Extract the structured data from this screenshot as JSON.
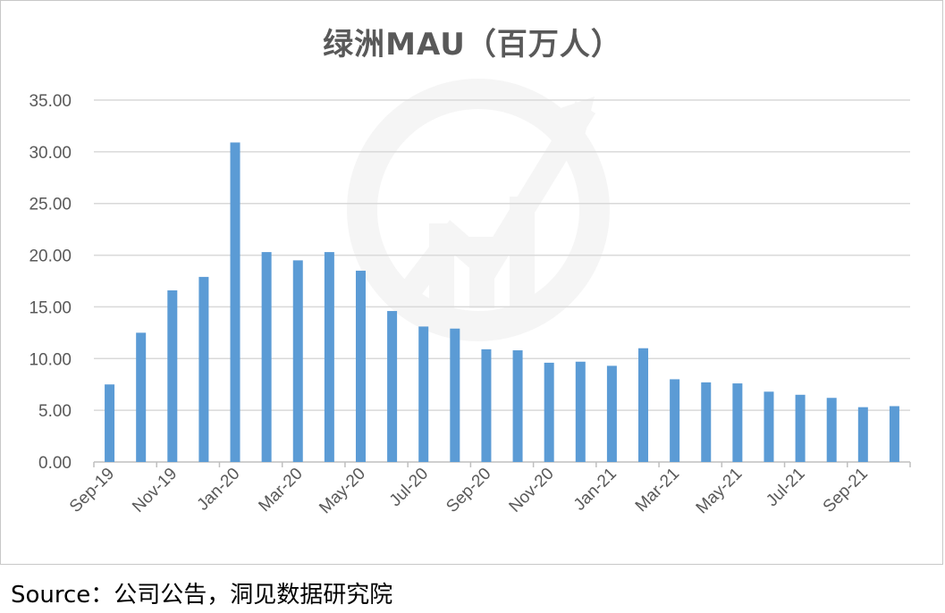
{
  "chart_data": {
    "type": "bar",
    "title": "绿洲MAU（百万人）",
    "categories": [
      "Sep-19",
      "Oct-19",
      "Nov-19",
      "Dec-19",
      "Jan-20",
      "Feb-20",
      "Mar-20",
      "Apr-20",
      "May-20",
      "Jun-20",
      "Jul-20",
      "Aug-20",
      "Sep-20",
      "Oct-20",
      "Nov-20",
      "Dec-20",
      "Jan-21",
      "Feb-21",
      "Mar-21",
      "Apr-21",
      "May-21",
      "Jun-21",
      "Jul-21",
      "Aug-21",
      "Sep-21",
      "Oct-21"
    ],
    "tick_labels": [
      "Sep-19",
      "Nov-19",
      "Jan-20",
      "Mar-20",
      "May-20",
      "Jul-20",
      "Sep-20",
      "Nov-20",
      "Jan-21",
      "Mar-21",
      "May-21",
      "Jul-21",
      "Sep-21"
    ],
    "values": [
      7.5,
      12.5,
      16.6,
      17.9,
      30.9,
      20.3,
      19.5,
      20.3,
      18.5,
      14.6,
      13.1,
      12.9,
      10.9,
      10.8,
      9.6,
      9.7,
      9.3,
      11.0,
      8.0,
      7.7,
      7.6,
      6.8,
      6.5,
      6.2,
      5.3,
      5.4
    ],
    "yticks": [
      "0.00",
      "5.00",
      "10.00",
      "15.00",
      "20.00",
      "25.00",
      "30.00",
      "35.00"
    ],
    "ylim": [
      0,
      35
    ],
    "xlabel": "",
    "ylabel": "",
    "grid": true,
    "bar_color": "#5b9bd5",
    "grid_color": "#d9d9d9"
  },
  "source": "Source：公司公告，洞见数据研究院"
}
